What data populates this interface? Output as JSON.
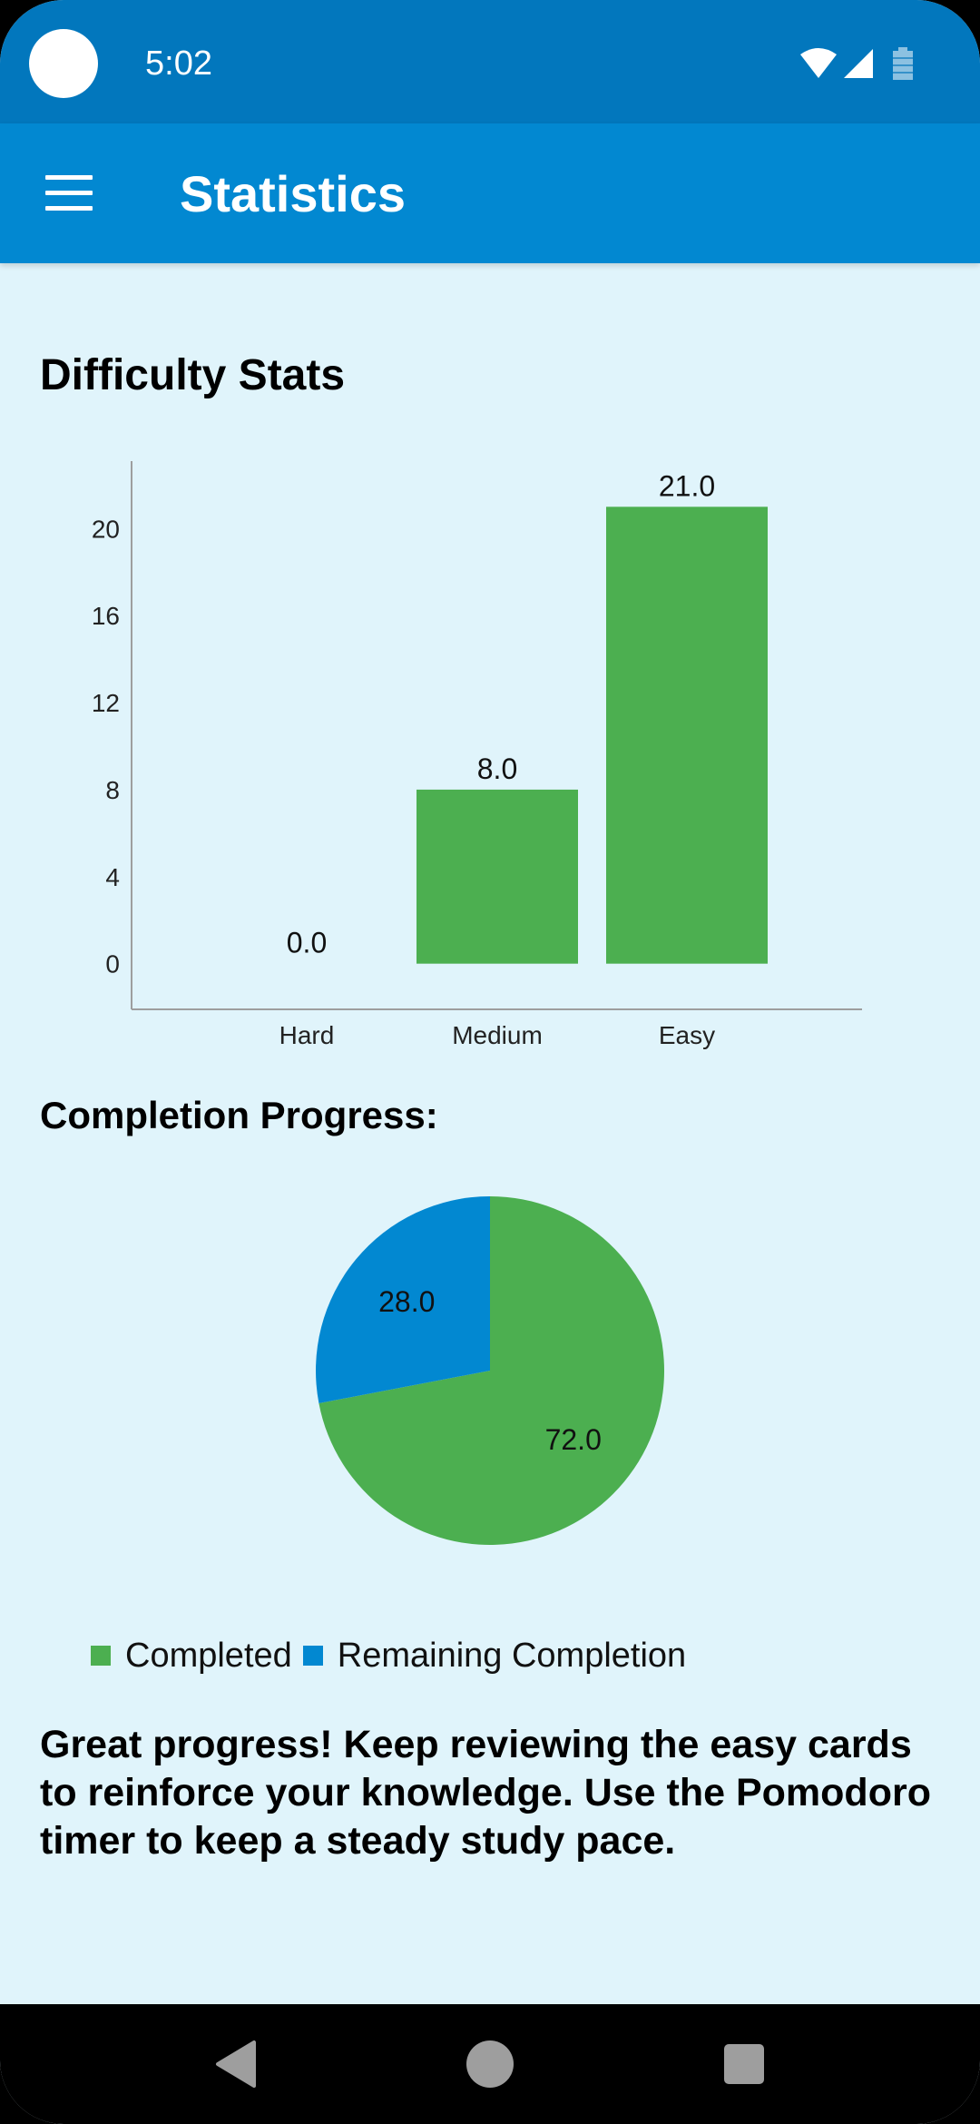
{
  "status_bar": {
    "time": "5:02",
    "icons": [
      "wifi-icon",
      "signal-icon",
      "battery-icon"
    ]
  },
  "app_bar": {
    "title": "Statistics",
    "menu_icon": "hamburger-menu-icon"
  },
  "difficulty": {
    "title": "Difficulty Stats"
  },
  "completion": {
    "title": "Completion Progress:"
  },
  "chart_data": [
    {
      "type": "bar",
      "title": "Difficulty Stats",
      "categories": [
        "Hard",
        "Medium",
        "Easy"
      ],
      "values": [
        0.0,
        8.0,
        21.0
      ],
      "value_labels": [
        "0.0",
        "8.0",
        "21.0"
      ],
      "yticks": [
        0,
        4,
        8,
        12,
        16,
        20
      ],
      "ylim": [
        -2.1,
        23.1
      ],
      "grid": false,
      "color": "#4caf50"
    },
    {
      "type": "pie",
      "title": "Completion Progress:",
      "labels": [
        "Completed",
        "Remaining Completion"
      ],
      "values": [
        72.0,
        28.0
      ],
      "value_labels": [
        "72.0",
        "28.0"
      ],
      "colors": [
        "#4caf50",
        "#0288d1"
      ],
      "legend": "bottom-left"
    }
  ],
  "tip": "Great progress! Keep reviewing the easy cards to reinforce your knowledge. Use the Pomodoro timer to keep a steady study pace.",
  "nav": {
    "back_icon": "back-triangle-icon",
    "home_icon": "home-circle-icon",
    "recents_icon": "recents-square-icon"
  }
}
